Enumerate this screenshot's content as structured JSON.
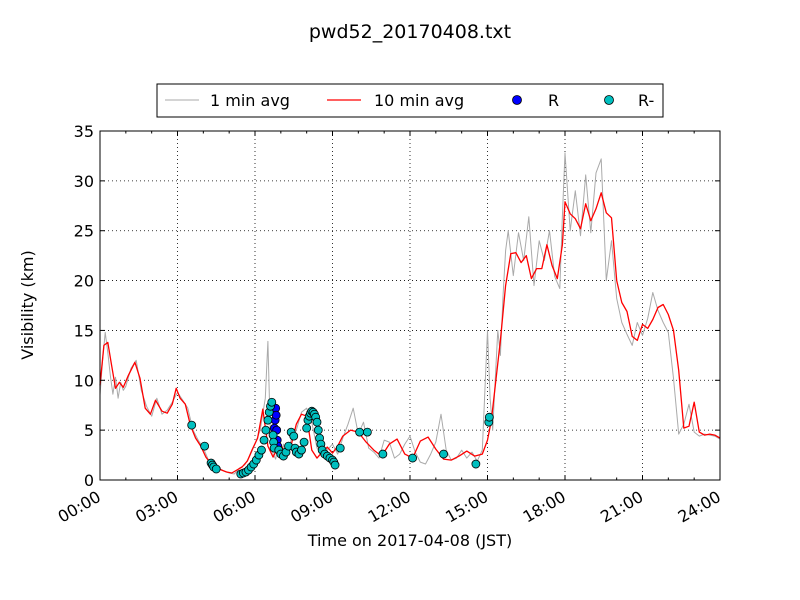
{
  "chart_data": {
    "type": "line",
    "title": "pwd52_20170408.txt",
    "xlabel": "Time on 2017-04-08 (JST)",
    "ylabel": "Visibility (km)",
    "xlim": [
      0,
      24
    ],
    "ylim": [
      0,
      35
    ],
    "x_tick_labels": [
      "00:00",
      "03:00",
      "06:00",
      "09:00",
      "12:00",
      "15:00",
      "18:00",
      "21:00",
      "24:00"
    ],
    "y_tick_labels": [
      "0",
      "5",
      "10",
      "15",
      "20",
      "25",
      "30",
      "35"
    ],
    "grid": true,
    "legend_position": "top-center",
    "legend": [
      {
        "label": "1 min avg",
        "type": "line",
        "color": "#aaaaaa"
      },
      {
        "label": "10 min avg",
        "type": "line",
        "color": "#ff0000"
      },
      {
        "label": "R",
        "type": "marker",
        "color": "#0000ff"
      },
      {
        "label": "R-",
        "type": "marker",
        "color": "#00bfbf"
      }
    ],
    "series": [
      {
        "name": "10 min avg",
        "color": "#ff0000",
        "x": [
          0.0,
          0.15,
          0.3,
          0.45,
          0.6,
          0.75,
          0.9,
          1.1,
          1.35,
          1.55,
          1.75,
          1.95,
          2.15,
          2.4,
          2.6,
          2.8,
          2.95,
          3.1,
          3.3,
          3.5,
          3.7,
          3.9,
          4.1,
          4.3,
          4.5,
          4.7,
          4.9,
          5.1,
          5.3,
          5.5,
          5.7,
          5.9,
          6.1,
          6.3,
          6.5,
          6.7,
          6.9,
          7.05,
          7.2,
          7.4,
          7.6,
          7.8,
          8.0,
          8.2,
          8.4,
          8.6,
          8.8,
          9.0,
          9.2,
          9.4,
          9.7,
          10.0,
          10.3,
          10.6,
          10.9,
          11.2,
          11.5,
          11.8,
          12.1,
          12.4,
          12.7,
          13.0,
          13.3,
          13.6,
          13.9,
          14.2,
          14.5,
          14.8,
          15.0,
          15.15,
          15.3,
          15.5,
          15.7,
          15.9,
          16.1,
          16.3,
          16.5,
          16.7,
          16.9,
          17.1,
          17.3,
          17.5,
          17.7,
          17.9,
          18.0,
          18.2,
          18.4,
          18.6,
          18.8,
          19.0,
          19.2,
          19.4,
          19.6,
          19.8,
          20.0,
          20.2,
          20.4,
          20.6,
          20.8,
          21.0,
          21.2,
          21.4,
          21.6,
          21.8,
          22.0,
          22.2,
          22.4,
          22.6,
          22.8,
          23.0,
          23.2,
          23.4,
          23.6,
          23.8,
          24.0
        ],
        "y": [
          9.5,
          13.5,
          13.8,
          11.5,
          9.2,
          9.8,
          9.3,
          10.5,
          11.8,
          10.2,
          7.2,
          6.6,
          8.0,
          6.9,
          6.7,
          7.6,
          9.2,
          8.2,
          7.6,
          5.5,
          4.2,
          3.4,
          2.3,
          1.6,
          1.3,
          1.0,
          0.8,
          0.7,
          1.0,
          1.3,
          1.9,
          3.1,
          4.2,
          7.1,
          3.4,
          2.3,
          3.4,
          3.3,
          2.3,
          3.5,
          5.6,
          6.6,
          6.4,
          3.0,
          2.2,
          2.8,
          3.3,
          2.7,
          3.4,
          4.4,
          5.0,
          4.8,
          3.8,
          3.0,
          2.4,
          3.6,
          4.1,
          2.6,
          2.2,
          3.9,
          4.3,
          3.1,
          2.1,
          2.0,
          2.4,
          2.9,
          2.4,
          2.6,
          4.0,
          6.0,
          9.5,
          14.0,
          19.5,
          22.7,
          22.8,
          21.8,
          22.5,
          20.2,
          21.2,
          21.2,
          23.6,
          21.5,
          20.2,
          23.6,
          27.9,
          26.7,
          26.2,
          25.2,
          27.7,
          26.0,
          27.2,
          28.8,
          26.8,
          26.3,
          20.0,
          17.8,
          16.9,
          14.4,
          14.0,
          15.6,
          15.2,
          16.1,
          17.3,
          17.6,
          16.6,
          15.0,
          11.0,
          5.2,
          5.4,
          7.8,
          4.8,
          4.5,
          4.6,
          4.5,
          4.2
        ]
      },
      {
        "name": "1 min avg",
        "color": "#aaaaaa",
        "x": [
          0.0,
          0.1,
          0.2,
          0.3,
          0.4,
          0.5,
          0.6,
          0.7,
          0.8,
          0.9,
          1.0,
          1.2,
          1.4,
          1.6,
          1.8,
          2.0,
          2.2,
          2.4,
          2.6,
          2.8,
          3.0,
          3.2,
          3.4,
          3.6,
          3.8,
          4.0,
          4.2,
          4.4,
          4.6,
          4.8,
          5.0,
          5.2,
          5.4,
          5.6,
          5.8,
          6.0,
          6.2,
          6.4,
          6.5,
          6.6,
          6.7,
          6.8,
          6.9,
          7.0,
          7.1,
          7.2,
          7.4,
          7.6,
          7.8,
          8.0,
          8.2,
          8.4,
          8.6,
          8.8,
          9.0,
          9.2,
          9.4,
          9.6,
          9.8,
          10.0,
          10.2,
          10.4,
          10.6,
          10.8,
          11.0,
          11.2,
          11.4,
          11.6,
          11.8,
          12.0,
          12.2,
          12.4,
          12.6,
          12.8,
          13.0,
          13.2,
          13.4,
          13.6,
          13.8,
          14.0,
          14.2,
          14.4,
          14.6,
          14.8,
          14.9,
          15.0,
          15.1,
          15.2,
          15.3,
          15.4,
          15.5,
          15.6,
          15.7,
          15.8,
          16.0,
          16.2,
          16.4,
          16.6,
          16.8,
          17.0,
          17.2,
          17.4,
          17.6,
          17.8,
          17.9,
          18.0,
          18.2,
          18.4,
          18.6,
          18.8,
          19.0,
          19.2,
          19.4,
          19.6,
          19.8,
          20.0,
          20.2,
          20.4,
          20.6,
          20.8,
          21.0,
          21.2,
          21.4,
          21.6,
          21.8,
          22.0,
          22.2,
          22.4,
          22.6,
          22.8,
          23.0,
          23.2,
          23.4,
          23.6,
          23.8,
          24.0
        ],
        "y": [
          8.5,
          12.0,
          14.8,
          12.8,
          10.5,
          8.6,
          10.3,
          8.2,
          9.8,
          9.0,
          9.4,
          11.2,
          12.0,
          9.0,
          7.4,
          6.4,
          8.2,
          6.6,
          7.0,
          7.8,
          8.8,
          8.0,
          7.2,
          5.0,
          4.0,
          3.2,
          2.0,
          1.4,
          1.2,
          0.9,
          0.7,
          0.6,
          1.2,
          1.5,
          2.4,
          3.6,
          5.0,
          8.2,
          13.9,
          4.0,
          2.6,
          2.1,
          3.8,
          2.2,
          3.6,
          2.5,
          4.0,
          5.0,
          6.8,
          7.2,
          5.8,
          3.2,
          2.5,
          3.0,
          3.6,
          2.6,
          4.2,
          5.6,
          7.2,
          4.6,
          5.8,
          3.2,
          2.8,
          2.2,
          4.0,
          3.8,
          2.2,
          2.6,
          3.6,
          4.4,
          2.8,
          1.8,
          1.6,
          2.6,
          3.8,
          6.6,
          3.0,
          2.0,
          2.2,
          3.0,
          2.2,
          2.8,
          1.9,
          3.0,
          9.0,
          15.0,
          8.2,
          5.0,
          10.2,
          15.0,
          12.5,
          18.4,
          23.0,
          25.0,
          20.5,
          24.8,
          22.0,
          26.4,
          19.5,
          24.0,
          22.0,
          25.0,
          20.4,
          19.2,
          26.5,
          32.8,
          25.0,
          29.0,
          24.5,
          30.6,
          24.8,
          30.8,
          32.2,
          20.0,
          24.0,
          18.2,
          15.8,
          14.6,
          13.5,
          15.8,
          14.5,
          16.2,
          18.8,
          17.0,
          15.8,
          14.8,
          10.2,
          4.6,
          5.6,
          7.6,
          4.8,
          4.4,
          4.6,
          4.5,
          4.4,
          4.1
        ]
      },
      {
        "name": "R",
        "color": "#0000ff",
        "type": "scatter",
        "x": [
          6.75,
          6.78,
          6.8,
          6.82,
          6.84,
          6.86,
          6.88
        ],
        "y": [
          5.2,
          6.0,
          7.2,
          6.5,
          5.0,
          4.0,
          3.4
        ]
      },
      {
        "name": "R-",
        "color": "#00bfbf",
        "type": "scatter",
        "x": [
          3.55,
          4.05,
          4.3,
          4.35,
          4.4,
          4.5,
          5.45,
          5.55,
          5.65,
          5.75,
          5.85,
          5.95,
          6.05,
          6.15,
          6.25,
          6.35,
          6.42,
          6.5,
          6.55,
          6.6,
          6.65,
          6.7,
          6.72,
          6.74,
          6.92,
          7.0,
          7.1,
          7.2,
          7.3,
          7.4,
          7.5,
          7.55,
          7.6,
          7.7,
          7.8,
          7.9,
          8.0,
          8.05,
          8.1,
          8.15,
          8.2,
          8.25,
          8.3,
          8.35,
          8.4,
          8.45,
          8.5,
          8.55,
          8.6,
          8.7,
          8.8,
          8.9,
          9.0,
          9.05,
          9.1,
          9.3,
          10.05,
          10.35,
          10.95,
          12.1,
          13.3,
          14.55,
          15.05,
          15.07
        ],
        "y": [
          5.5,
          3.4,
          1.7,
          1.5,
          1.3,
          1.1,
          0.6,
          0.7,
          0.8,
          1.0,
          1.3,
          1.6,
          2.0,
          2.5,
          3.0,
          4.0,
          5.0,
          6.0,
          6.8,
          7.4,
          7.8,
          4.5,
          3.8,
          3.2,
          3.0,
          2.6,
          2.4,
          2.8,
          3.4,
          4.8,
          4.4,
          3.2,
          2.8,
          2.6,
          3.0,
          3.8,
          5.2,
          6.0,
          6.4,
          6.7,
          6.9,
          6.8,
          6.6,
          6.3,
          5.8,
          5.0,
          4.2,
          3.6,
          3.0,
          2.6,
          2.4,
          2.2,
          2.0,
          1.8,
          1.5,
          3.2,
          4.8,
          4.8,
          2.6,
          2.2,
          2.6,
          1.6,
          5.8,
          6.3
        ]
      }
    ]
  }
}
